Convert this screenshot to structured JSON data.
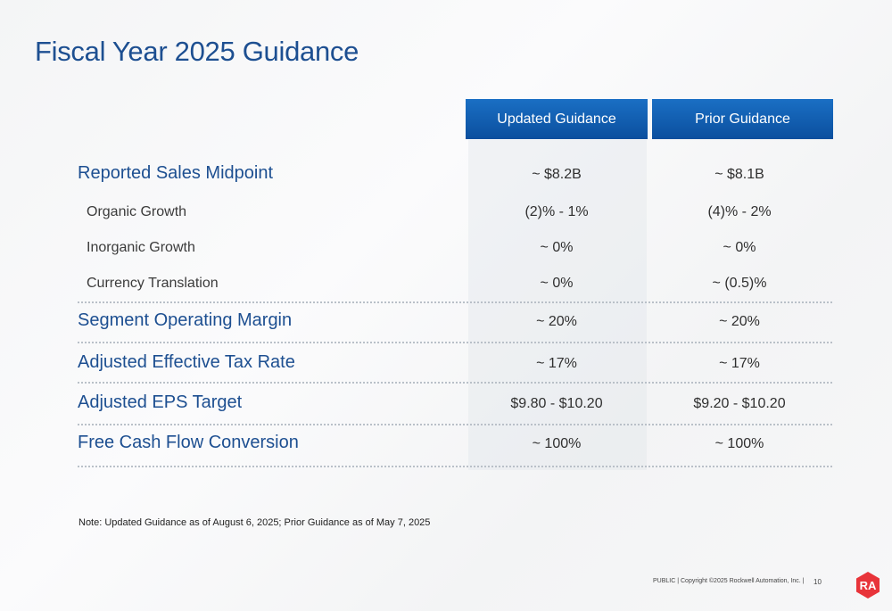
{
  "title": "Fiscal Year 2025 Guidance",
  "headers": {
    "updated": "Updated Guidance",
    "prior": "Prior Guidance"
  },
  "rows": [
    {
      "label": "Reported Sales Midpoint",
      "updated": "~ $8.2B",
      "prior": "~ $8.1B"
    },
    {
      "label": "Organic Growth",
      "updated": "(2)% - 1%",
      "prior": "(4)% - 2%"
    },
    {
      "label": "Inorganic Growth",
      "updated": "~ 0%",
      "prior": "~ 0%"
    },
    {
      "label": "Currency Translation",
      "updated": "~ 0%",
      "prior": "~ (0.5)%"
    },
    {
      "label": "Segment Operating Margin",
      "updated": "~ 20%",
      "prior": "~ 20%"
    },
    {
      "label": "Adjusted Effective Tax Rate",
      "updated": "~ 17%",
      "prior": "~ 17%"
    },
    {
      "label": "Adjusted EPS Target",
      "updated": "$9.80 - $10.20",
      "prior": "$9.20 - $10.20"
    },
    {
      "label": "Free Cash Flow Conversion",
      "updated": "~ 100%",
      "prior": "~ 100%"
    }
  ],
  "note": "Note: Updated Guidance as of August 6, 2025; Prior Guidance as of May 7, 2025",
  "footer": "PUBLIC | Copyright ©2025 Rockwell Automation, Inc. |",
  "page_number": "10",
  "logo_text": "RA",
  "colors": {
    "title": "#1d4f91",
    "header": "#0b4f9e",
    "logo": "#e8343a"
  }
}
